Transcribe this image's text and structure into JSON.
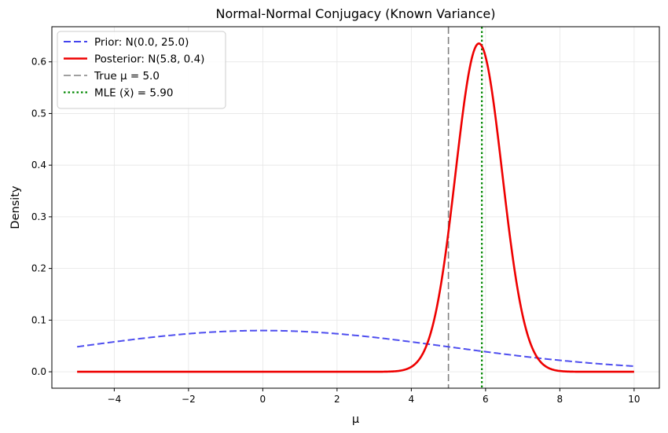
{
  "chart_data": {
    "type": "line",
    "title": "Normal-Normal Conjugacy (Known Variance)",
    "xlabel": "μ",
    "ylabel": "Density",
    "xlim": [
      -5.68,
      10.68
    ],
    "ylim": [
      -0.0318,
      0.668
    ],
    "xticks": [
      -4,
      -2,
      0,
      2,
      4,
      6,
      8,
      10
    ],
    "yticks": [
      0.0,
      0.1,
      0.2,
      0.3,
      0.4,
      0.5,
      0.6
    ],
    "xtick_labels": [
      "−4",
      "−2",
      "0",
      "2",
      "4",
      "6",
      "8",
      "10"
    ],
    "ytick_labels": [
      "0.0",
      "0.1",
      "0.2",
      "0.3",
      "0.4",
      "0.5",
      "0.6"
    ],
    "grid": true,
    "legend_position": "top-left",
    "series": [
      {
        "name": "Prior: N(0.0, 25.0)",
        "kind": "normal_pdf",
        "mean": 0.0,
        "variance": 25.0,
        "x_range": [
          -5,
          10
        ],
        "color": "#4444ee",
        "style": "dashed"
      },
      {
        "name": "Posterior: N(5.8, 0.4)",
        "kind": "normal_pdf",
        "mean": 5.82,
        "variance": 0.394,
        "x_range": [
          -5,
          10
        ],
        "color": "#ee0000",
        "style": "solid"
      }
    ],
    "vlines": [
      {
        "name": "True μ = 5.0",
        "x": 5.0,
        "color": "#808080",
        "style": "dashed"
      },
      {
        "name": "MLE (x̄) = 5.90",
        "x": 5.9,
        "color": "#008800",
        "style": "dotted"
      }
    ]
  }
}
